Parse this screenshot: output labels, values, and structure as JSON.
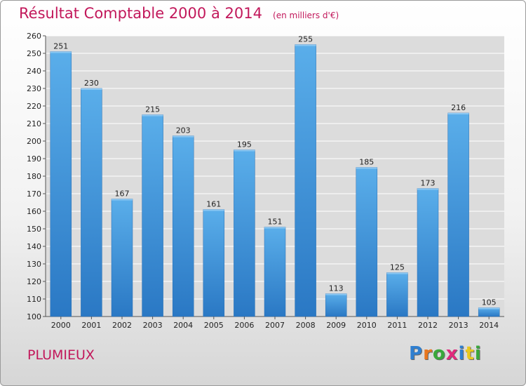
{
  "header": {
    "title": "Résultat Comptable 2000 à 2014",
    "unit": "(en milliers d'€)"
  },
  "footer": {
    "place": "PLUMIEUX",
    "brand": {
      "letters": [
        "P",
        "r",
        "o",
        "x",
        "i",
        "t",
        "i"
      ],
      "colors": [
        "#2f7fd0",
        "#e8761e",
        "#39a83b",
        "#e02a7c",
        "#2f7fd0",
        "#e8c81e",
        "#39a83b"
      ]
    }
  },
  "chart_data": {
    "type": "bar",
    "categories": [
      "2000",
      "2001",
      "2002",
      "2003",
      "2004",
      "2005",
      "2006",
      "2007",
      "2008",
      "2009",
      "2010",
      "2011",
      "2012",
      "2013",
      "2014"
    ],
    "values": [
      251,
      230,
      167,
      215,
      203,
      161,
      195,
      151,
      255,
      113,
      185,
      125,
      173,
      216,
      105
    ],
    "title": "Résultat Comptable 2000 à 2014",
    "xlabel": "",
    "ylabel": "",
    "ylim": [
      100,
      260
    ],
    "yticks": [
      100,
      110,
      120,
      130,
      140,
      150,
      160,
      170,
      180,
      190,
      200,
      210,
      220,
      230,
      240,
      250,
      260
    ],
    "grid": true,
    "bar_color": "#3d8fd8",
    "background_color": "#dcdcdc"
  }
}
